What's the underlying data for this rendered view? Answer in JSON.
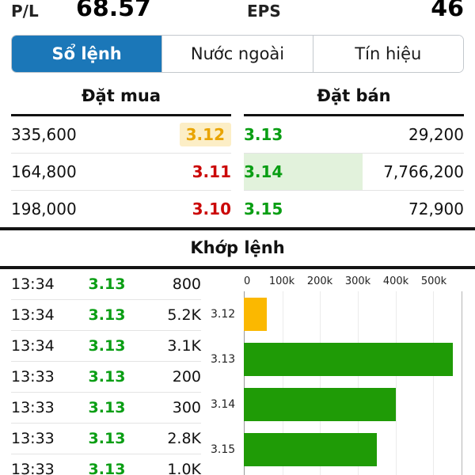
{
  "colors": {
    "accent_blue": "#1b77b8",
    "up_green_text": "#0a9e14",
    "down_red_text": "#cb0808",
    "ref_yellow_text": "#e9a400",
    "yellow_chip_bg": "#fceec6",
    "green_chip_bg": "#e2f2dc",
    "bar_green": "#1f9b06",
    "bar_yellow": "#fbb800"
  },
  "top_metrics": {
    "pl_label": "P/L",
    "pl_value": "68.57",
    "eps_label": "EPS",
    "eps_value": "46"
  },
  "tabs": [
    {
      "label": "Sổ lệnh",
      "active": true
    },
    {
      "label": "Nước ngoài",
      "active": false
    },
    {
      "label": "Tín hiệu",
      "active": false
    }
  ],
  "order_book": {
    "buy_header": "Đặt mua",
    "sell_header": "Đặt bán",
    "rows": [
      {
        "buy_vol": "335,600",
        "buy_price": "3.12",
        "sell_price": "3.13",
        "sell_vol": "29,200"
      },
      {
        "buy_vol": "164,800",
        "buy_price": "3.11",
        "sell_price": "3.14",
        "sell_vol": "7,766,200"
      },
      {
        "buy_vol": "198,000",
        "buy_price": "3.10",
        "sell_price": "3.15",
        "sell_vol": "72,900"
      }
    ]
  },
  "matched": {
    "title": "Khớp lệnh",
    "trades": [
      {
        "time": "13:34",
        "price": "3.13",
        "vol": "800"
      },
      {
        "time": "13:34",
        "price": "3.13",
        "vol": "5.2K"
      },
      {
        "time": "13:34",
        "price": "3.13",
        "vol": "3.1K"
      },
      {
        "time": "13:33",
        "price": "3.13",
        "vol": "200"
      },
      {
        "time": "13:33",
        "price": "3.13",
        "vol": "300"
      },
      {
        "time": "13:33",
        "price": "3.13",
        "vol": "2.8K"
      },
      {
        "time": "13:33",
        "price": "3.13",
        "vol": "1.0K"
      }
    ]
  },
  "chart_data": {
    "type": "bar",
    "orientation": "horizontal",
    "title": "Khớp lệnh volume by price",
    "categories": [
      "3.12",
      "3.13",
      "3.14",
      "3.15"
    ],
    "values": [
      60000,
      550000,
      400000,
      350000
    ],
    "bar_colors": [
      "#fbb800",
      "#1f9b06",
      "#1f9b06",
      "#1f9b06"
    ],
    "x_ticks": [
      "0",
      "100k",
      "200k",
      "300k",
      "400k",
      "500k"
    ],
    "x_tick_values": [
      0,
      100000,
      200000,
      300000,
      400000,
      500000
    ],
    "xmax": 575000,
    "xlabel": "",
    "ylabel": "",
    "grid": true,
    "legend": false
  }
}
